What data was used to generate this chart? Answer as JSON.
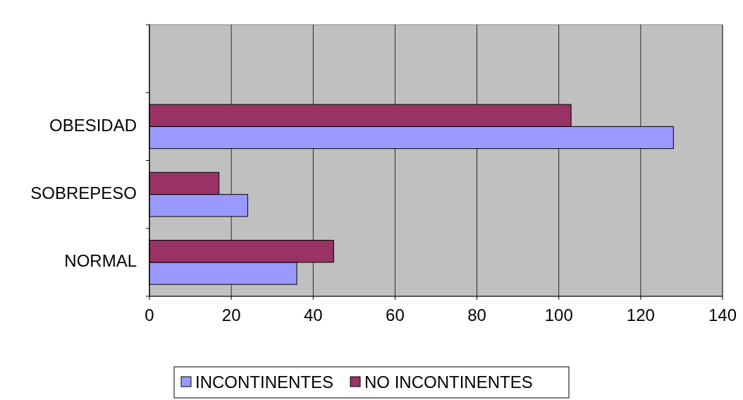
{
  "chart_data": {
    "type": "bar",
    "orientation": "horizontal",
    "categories": [
      null,
      "OBESIDAD",
      "SOBREPESO",
      "NORMAL"
    ],
    "series": [
      {
        "name": "INCONTINENTES",
        "color": "#9999ff",
        "values": [
          null,
          128,
          24,
          36
        ]
      },
      {
        "name": "NO INCONTINENTES",
        "color": "#993366",
        "values": [
          null,
          103,
          17,
          45
        ]
      }
    ],
    "xlim": [
      0,
      140
    ],
    "xticks": [
      0,
      20,
      40,
      60,
      80,
      100,
      120,
      140
    ],
    "grid": "x",
    "legend": "bottom"
  }
}
